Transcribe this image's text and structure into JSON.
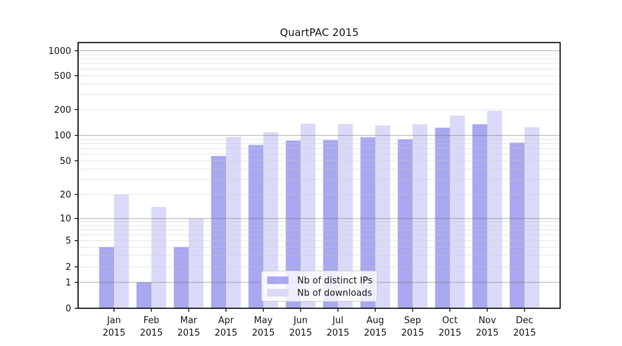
{
  "figure": {
    "background": "#ffffff"
  },
  "chart_data": {
    "type": "bar",
    "title": "QuartPAC 2015",
    "categories": [
      "Jan",
      "Feb",
      "Mar",
      "Apr",
      "May",
      "Jun",
      "Jul",
      "Aug",
      "Sep",
      "Oct",
      "Nov",
      "Dec"
    ],
    "x_sublabel": "2015",
    "series": [
      {
        "name": "Nb of distinct IPs",
        "color": "#a8a8f0",
        "values": [
          4,
          1,
          4,
          57,
          77,
          87,
          88,
          95,
          90,
          123,
          135,
          82
        ]
      },
      {
        "name": "Nb of downloads",
        "color": "#dadaf8",
        "values": [
          20,
          14,
          10,
          96,
          109,
          137,
          136,
          131,
          135,
          170,
          193,
          125
        ]
      }
    ],
    "yscale": "symlog",
    "ylim": [
      0,
      1000
    ],
    "y_ticks": [
      0,
      1,
      2,
      5,
      10,
      20,
      50,
      100,
      200,
      500,
      1000
    ],
    "y_tick_labels": [
      "0",
      "1",
      "2",
      "5",
      "10",
      "20",
      "50",
      "100",
      "200",
      "500",
      "1000"
    ],
    "grid": "both",
    "legend_position": "lower center",
    "legend": [
      "Nb of distinct IPs",
      "Nb of downloads"
    ]
  },
  "colors": {
    "bar_distinct_ips": "#a8a8f0",
    "bar_downloads": "#dadaf8",
    "grid_major": "#b4b4b4",
    "grid_minor": "#e6e6e6",
    "axis": "#000000",
    "text": "#1a1a1a",
    "legend_border": "#cccccc",
    "legend_background": "#ffffff"
  }
}
